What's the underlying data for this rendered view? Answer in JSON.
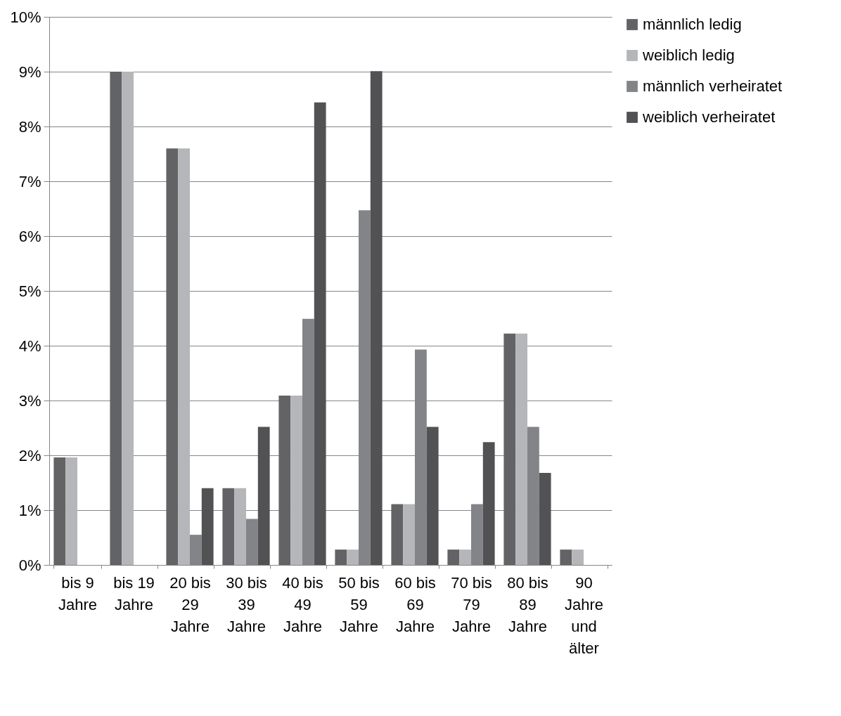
{
  "chart_data": {
    "type": "bar",
    "categories": [
      "bis 9 Jahre",
      "bis 19 Jahre",
      "20 bis 29 Jahre",
      "30 bis 39 Jahre",
      "40 bis 49 Jahre",
      "50 bis 59 Jahre",
      "60 bis 69 Jahre",
      "70 bis 79 Jahre",
      "80 bis 89 Jahre",
      "90 Jahre und älter"
    ],
    "series": [
      {
        "name": "männlich ledig",
        "color": "#636365",
        "values": [
          1.96,
          9.0,
          7.6,
          1.4,
          3.09,
          0.28,
          1.11,
          0.28,
          4.22,
          0.28
        ]
      },
      {
        "name": "weiblich ledig",
        "color": "#b5b6b9",
        "values": [
          1.96,
          9.0,
          7.6,
          1.4,
          3.09,
          0.28,
          1.11,
          0.28,
          4.22,
          0.28
        ]
      },
      {
        "name": "männlich verheiratet",
        "color": "#838488",
        "values": [
          null,
          null,
          0.55,
          0.84,
          4.49,
          6.47,
          3.93,
          1.11,
          2.52,
          null
        ]
      },
      {
        "name": "weiblich verheiratet",
        "color": "#525254",
        "values": [
          null,
          null,
          1.4,
          2.52,
          8.44,
          9.01,
          2.52,
          2.24,
          1.68,
          null
        ]
      }
    ],
    "ylim": [
      0,
      10
    ],
    "yticks": [
      {
        "value": 0,
        "label": "0%"
      },
      {
        "value": 1,
        "label": "1%"
      },
      {
        "value": 2,
        "label": "2%"
      },
      {
        "value": 3,
        "label": "3%"
      },
      {
        "value": 4,
        "label": "4%"
      },
      {
        "value": 5,
        "label": "5%"
      },
      {
        "value": 6,
        "label": "6%"
      },
      {
        "value": 7,
        "label": "7%"
      },
      {
        "value": 8,
        "label": "8%"
      },
      {
        "value": 9,
        "label": "9%"
      },
      {
        "value": 10,
        "label": "10%"
      }
    ],
    "grid": "y",
    "legend": "right"
  }
}
